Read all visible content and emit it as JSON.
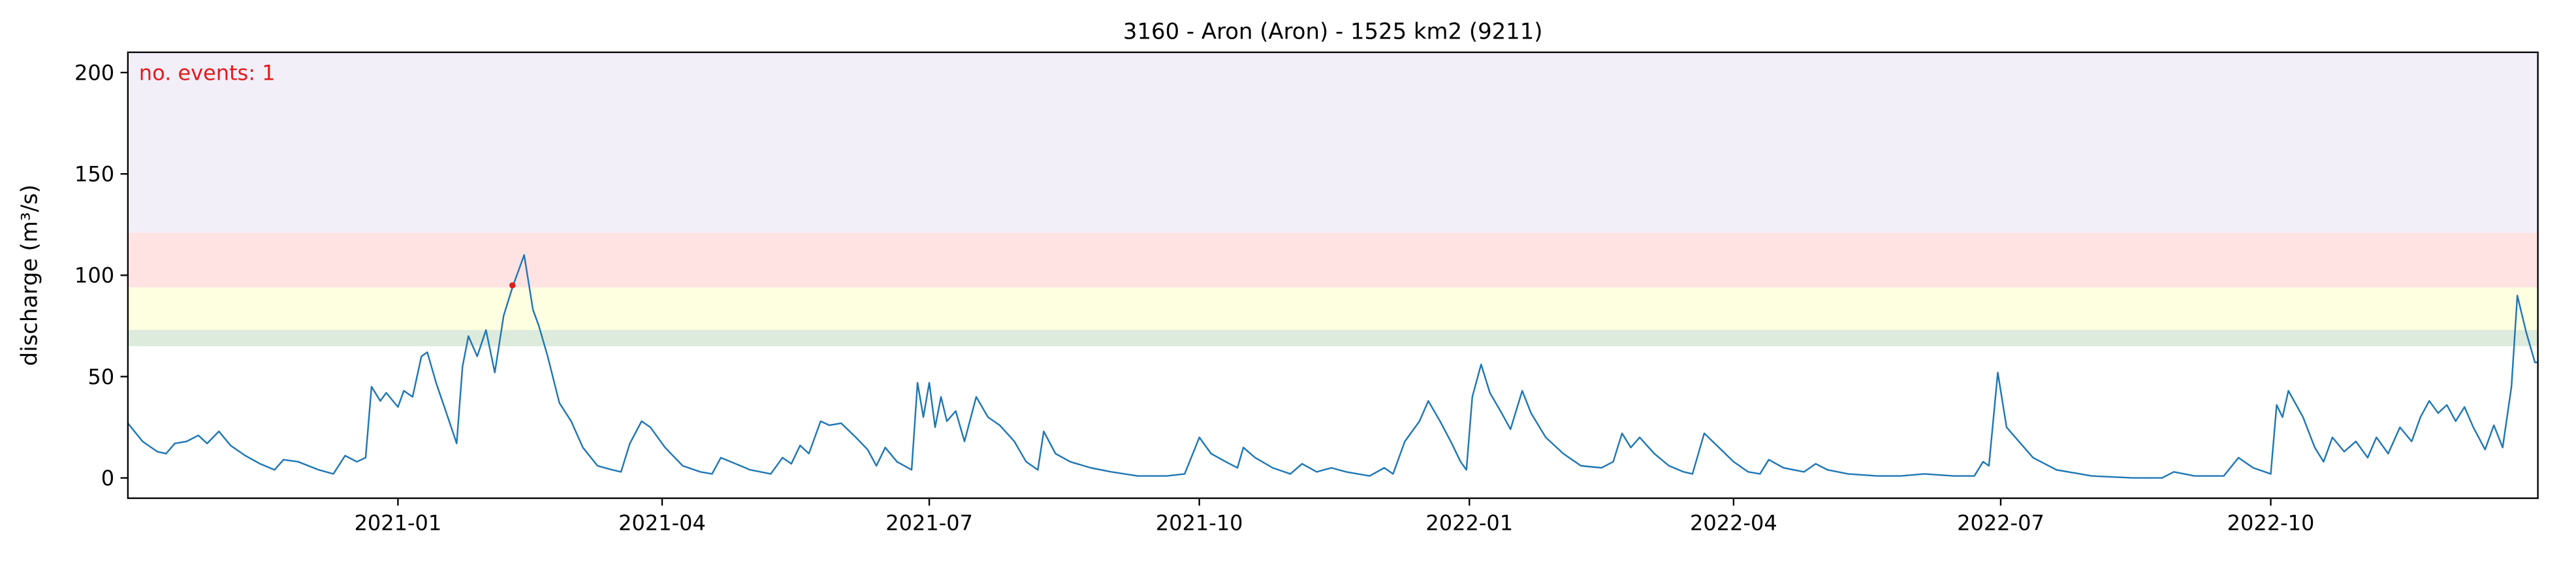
{
  "chart_data": {
    "type": "line",
    "title": "3160 - Aron (Aron) - 1525 km2 (9211)",
    "xlabel": "",
    "ylabel": "discharge (m³/s)",
    "xlim": [
      "2020-10-01",
      "2022-12-31"
    ],
    "ylim": [
      -10,
      210
    ],
    "x_ticks": [
      "2021-01",
      "2021-04",
      "2021-07",
      "2021-10",
      "2022-01",
      "2022-04",
      "2022-07",
      "2022-10"
    ],
    "y_ticks": [
      0,
      50,
      100,
      150,
      200
    ],
    "annotation": "no. events: 1",
    "thresholds": [
      {
        "from": 65,
        "to": 73,
        "color": "#dcebdc"
      },
      {
        "from": 73,
        "to": 94,
        "color": "#fefee0"
      },
      {
        "from": 94,
        "to": 121,
        "color": "#ffe3e3"
      },
      {
        "from": 121,
        "to": 210,
        "color": "#f2eff9"
      }
    ],
    "series": [
      {
        "color": "#1f77b4",
        "points": [
          [
            "2020-10-01",
            27
          ],
          [
            "2020-10-06",
            18
          ],
          [
            "2020-10-11",
            13
          ],
          [
            "2020-10-14",
            12
          ],
          [
            "2020-10-17",
            17
          ],
          [
            "2020-10-21",
            18
          ],
          [
            "2020-10-25",
            21
          ],
          [
            "2020-10-28",
            17
          ],
          [
            "2020-11-01",
            23
          ],
          [
            "2020-11-05",
            16
          ],
          [
            "2020-11-10",
            11
          ],
          [
            "2020-11-15",
            7
          ],
          [
            "2020-11-20",
            4
          ],
          [
            "2020-11-23",
            9
          ],
          [
            "2020-11-28",
            8
          ],
          [
            "2020-12-05",
            4
          ],
          [
            "2020-12-10",
            2
          ],
          [
            "2020-12-14",
            11
          ],
          [
            "2020-12-18",
            8
          ],
          [
            "2020-12-21",
            10
          ],
          [
            "2020-12-23",
            45
          ],
          [
            "2020-12-26",
            38
          ],
          [
            "2020-12-28",
            42
          ],
          [
            "2021-01-01",
            35
          ],
          [
            "2021-01-03",
            43
          ],
          [
            "2021-01-06",
            40
          ],
          [
            "2021-01-09",
            60
          ],
          [
            "2021-01-11",
            62
          ],
          [
            "2021-01-14",
            47
          ],
          [
            "2021-01-18",
            30
          ],
          [
            "2021-01-21",
            17
          ],
          [
            "2021-01-23",
            55
          ],
          [
            "2021-01-25",
            70
          ],
          [
            "2021-01-28",
            60
          ],
          [
            "2021-01-31",
            73
          ],
          [
            "2021-02-03",
            52
          ],
          [
            "2021-02-06",
            80
          ],
          [
            "2021-02-09",
            94
          ],
          [
            "2021-02-13",
            110
          ],
          [
            "2021-02-16",
            83
          ],
          [
            "2021-02-18",
            75
          ],
          [
            "2021-02-21",
            60
          ],
          [
            "2021-02-25",
            37
          ],
          [
            "2021-03-01",
            28
          ],
          [
            "2021-03-05",
            15
          ],
          [
            "2021-03-10",
            6
          ],
          [
            "2021-03-15",
            4
          ],
          [
            "2021-03-18",
            3
          ],
          [
            "2021-03-21",
            17
          ],
          [
            "2021-03-25",
            28
          ],
          [
            "2021-03-28",
            25
          ],
          [
            "2021-04-02",
            15
          ],
          [
            "2021-04-08",
            6
          ],
          [
            "2021-04-14",
            3
          ],
          [
            "2021-04-18",
            2
          ],
          [
            "2021-04-21",
            10
          ],
          [
            "2021-04-26",
            7
          ],
          [
            "2021-05-01",
            4
          ],
          [
            "2021-05-08",
            2
          ],
          [
            "2021-05-12",
            10
          ],
          [
            "2021-05-15",
            7
          ],
          [
            "2021-05-18",
            16
          ],
          [
            "2021-05-21",
            12
          ],
          [
            "2021-05-25",
            28
          ],
          [
            "2021-05-28",
            26
          ],
          [
            "2021-06-01",
            27
          ],
          [
            "2021-06-06",
            20
          ],
          [
            "2021-06-10",
            14
          ],
          [
            "2021-06-13",
            6
          ],
          [
            "2021-06-16",
            15
          ],
          [
            "2021-06-20",
            8
          ],
          [
            "2021-06-25",
            4
          ],
          [
            "2021-06-27",
            47
          ],
          [
            "2021-06-29",
            30
          ],
          [
            "2021-07-01",
            47
          ],
          [
            "2021-07-03",
            25
          ],
          [
            "2021-07-05",
            40
          ],
          [
            "2021-07-07",
            28
          ],
          [
            "2021-07-10",
            33
          ],
          [
            "2021-07-13",
            18
          ],
          [
            "2021-07-17",
            40
          ],
          [
            "2021-07-21",
            30
          ],
          [
            "2021-07-25",
            26
          ],
          [
            "2021-07-30",
            18
          ],
          [
            "2021-08-03",
            8
          ],
          [
            "2021-08-07",
            4
          ],
          [
            "2021-08-09",
            23
          ],
          [
            "2021-08-13",
            12
          ],
          [
            "2021-08-18",
            8
          ],
          [
            "2021-08-25",
            5
          ],
          [
            "2021-09-01",
            3
          ],
          [
            "2021-09-10",
            1
          ],
          [
            "2021-09-20",
            1
          ],
          [
            "2021-09-26",
            2
          ],
          [
            "2021-10-01",
            20
          ],
          [
            "2021-10-05",
            12
          ],
          [
            "2021-10-10",
            8
          ],
          [
            "2021-10-14",
            5
          ],
          [
            "2021-10-16",
            15
          ],
          [
            "2021-10-20",
            10
          ],
          [
            "2021-10-26",
            5
          ],
          [
            "2021-11-01",
            2
          ],
          [
            "2021-11-05",
            7
          ],
          [
            "2021-11-10",
            3
          ],
          [
            "2021-11-15",
            5
          ],
          [
            "2021-11-20",
            3
          ],
          [
            "2021-11-28",
            1
          ],
          [
            "2021-12-03",
            5
          ],
          [
            "2021-12-06",
            2
          ],
          [
            "2021-12-10",
            18
          ],
          [
            "2021-12-15",
            28
          ],
          [
            "2021-12-18",
            38
          ],
          [
            "2021-12-22",
            28
          ],
          [
            "2021-12-26",
            17
          ],
          [
            "2021-12-29",
            8
          ],
          [
            "2021-12-31",
            4
          ],
          [
            "2022-01-02",
            40
          ],
          [
            "2022-01-05",
            56
          ],
          [
            "2022-01-08",
            42
          ],
          [
            "2022-01-12",
            32
          ],
          [
            "2022-01-15",
            24
          ],
          [
            "2022-01-19",
            43
          ],
          [
            "2022-01-22",
            32
          ],
          [
            "2022-01-27",
            20
          ],
          [
            "2022-02-02",
            12
          ],
          [
            "2022-02-08",
            6
          ],
          [
            "2022-02-15",
            5
          ],
          [
            "2022-02-19",
            8
          ],
          [
            "2022-02-22",
            22
          ],
          [
            "2022-02-25",
            15
          ],
          [
            "2022-02-28",
            20
          ],
          [
            "2022-03-05",
            12
          ],
          [
            "2022-03-10",
            6
          ],
          [
            "2022-03-15",
            3
          ],
          [
            "2022-03-18",
            2
          ],
          [
            "2022-03-22",
            22
          ],
          [
            "2022-03-27",
            15
          ],
          [
            "2022-04-01",
            8
          ],
          [
            "2022-04-06",
            3
          ],
          [
            "2022-04-10",
            2
          ],
          [
            "2022-04-13",
            9
          ],
          [
            "2022-04-18",
            5
          ],
          [
            "2022-04-25",
            3
          ],
          [
            "2022-04-29",
            7
          ],
          [
            "2022-05-03",
            4
          ],
          [
            "2022-05-10",
            2
          ],
          [
            "2022-05-20",
            1
          ],
          [
            "2022-05-28",
            1
          ],
          [
            "2022-06-05",
            2
          ],
          [
            "2022-06-15",
            1
          ],
          [
            "2022-06-22",
            1
          ],
          [
            "2022-06-25",
            8
          ],
          [
            "2022-06-27",
            6
          ],
          [
            "2022-06-30",
            52
          ],
          [
            "2022-07-03",
            25
          ],
          [
            "2022-07-06",
            20
          ],
          [
            "2022-07-12",
            10
          ],
          [
            "2022-07-20",
            4
          ],
          [
            "2022-08-01",
            1
          ],
          [
            "2022-08-15",
            0
          ],
          [
            "2022-08-25",
            0
          ],
          [
            "2022-08-29",
            3
          ],
          [
            "2022-09-05",
            1
          ],
          [
            "2022-09-15",
            1
          ],
          [
            "2022-09-20",
            10
          ],
          [
            "2022-09-25",
            5
          ],
          [
            "2022-10-01",
            2
          ],
          [
            "2022-10-03",
            36
          ],
          [
            "2022-10-05",
            30
          ],
          [
            "2022-10-07",
            43
          ],
          [
            "2022-10-12",
            30
          ],
          [
            "2022-10-16",
            15
          ],
          [
            "2022-10-19",
            8
          ],
          [
            "2022-10-22",
            20
          ],
          [
            "2022-10-26",
            13
          ],
          [
            "2022-10-30",
            18
          ],
          [
            "2022-11-03",
            10
          ],
          [
            "2022-11-06",
            20
          ],
          [
            "2022-11-10",
            12
          ],
          [
            "2022-11-14",
            25
          ],
          [
            "2022-11-18",
            18
          ],
          [
            "2022-11-21",
            30
          ],
          [
            "2022-11-24",
            38
          ],
          [
            "2022-11-27",
            32
          ],
          [
            "2022-11-30",
            36
          ],
          [
            "2022-12-03",
            28
          ],
          [
            "2022-12-06",
            35
          ],
          [
            "2022-12-09",
            25
          ],
          [
            "2022-12-13",
            14
          ],
          [
            "2022-12-16",
            26
          ],
          [
            "2022-12-19",
            15
          ],
          [
            "2022-12-22",
            45
          ],
          [
            "2022-12-24",
            90
          ],
          [
            "2022-12-27",
            72
          ],
          [
            "2022-12-30",
            57
          ],
          [
            "2022-12-31",
            57
          ]
        ]
      }
    ],
    "event_markers": [
      {
        "x": "2021-02-09",
        "y": 95,
        "color": "#e31a1c"
      }
    ]
  }
}
